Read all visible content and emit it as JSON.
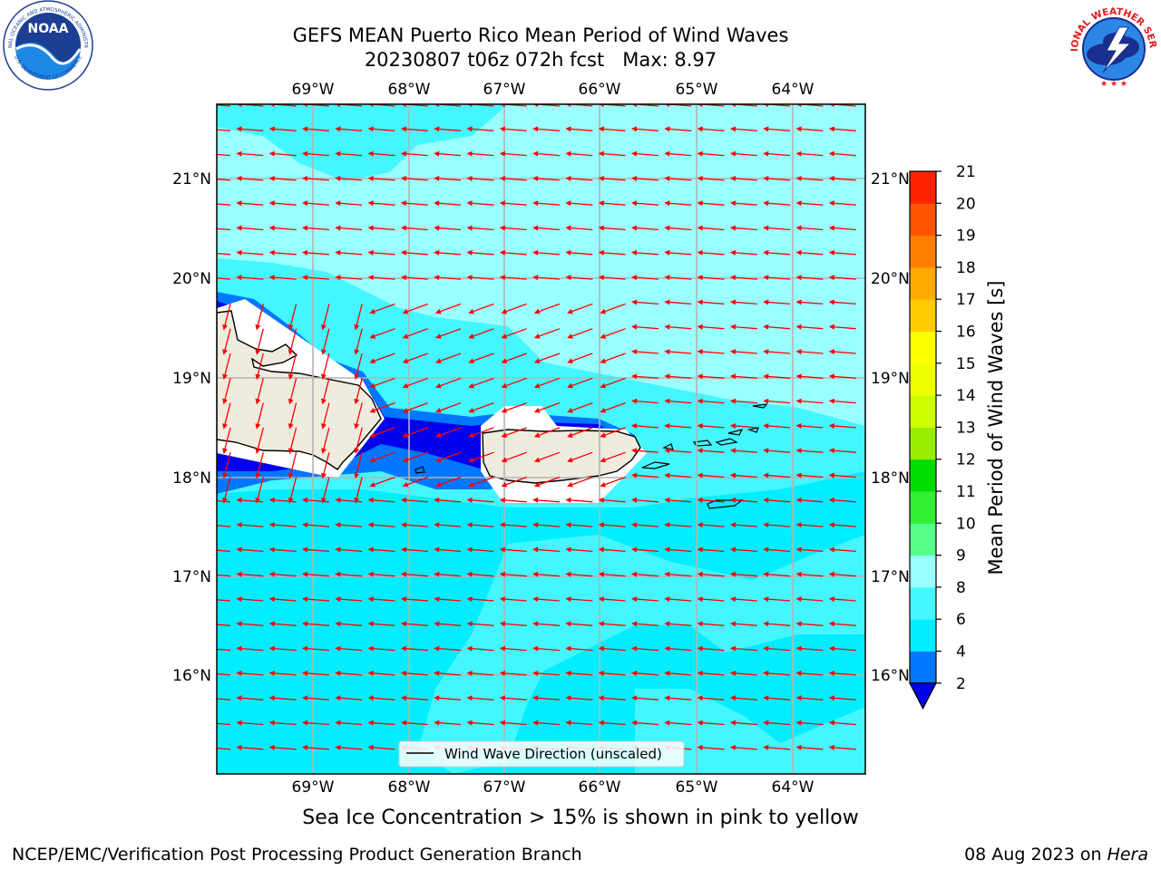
{
  "header": {
    "title_line1": "GEFS MEAN Puerto Rico Mean Period of Wind Waves",
    "title_line2": "20230807 t06z 072h fcst   Max: 8.97"
  },
  "logos": {
    "left": {
      "name": "NOAA",
      "arc_text": "NATIONAL OCEANIC AND ATMOSPHERIC ADMINISTRATION",
      "bottom_text": "U.S. DEPARTMENT OF COMMERCE"
    },
    "right": {
      "arc_text": "NATIONAL WEATHER SERVICE"
    }
  },
  "map": {
    "lon_ticks": [
      "69°W",
      "68°W",
      "67°W",
      "66°W",
      "65°W",
      "64°W"
    ],
    "lat_ticks": [
      "21°N",
      "20°N",
      "19°N",
      "18°N",
      "17°N",
      "16°N"
    ],
    "legend_label": "Wind Wave Direction (unscaled)",
    "arrow_color": "#ff0000",
    "land_color": "#efecdf"
  },
  "colorbar": {
    "label": "Mean Period of Wind Waves [s]",
    "ticks": [
      "2",
      "4",
      "6",
      "8",
      "9",
      "10",
      "11",
      "12",
      "13",
      "14",
      "15",
      "16",
      "17",
      "18",
      "19",
      "20",
      "21"
    ],
    "colors": [
      "#0000ee",
      "#0077ff",
      "#00eeff",
      "#44f6ff",
      "#99ffff",
      "#55ff88",
      "#33ee33",
      "#00dd00",
      "#99ee00",
      "#ccff00",
      "#eeff00",
      "#ffff00",
      "#ffcc00",
      "#ffaa00",
      "#ff8000",
      "#ff5500",
      "#ff2200",
      "#ff0000"
    ]
  },
  "notes": {
    "ice": "Sea Ice Concentration > 15% is shown in pink to yellow",
    "footer_left": "NCEP/EMC/Verification Post Processing Product Generation Branch",
    "footer_date": "08 Aug 2023 on ",
    "footer_machine": "Hera"
  }
}
